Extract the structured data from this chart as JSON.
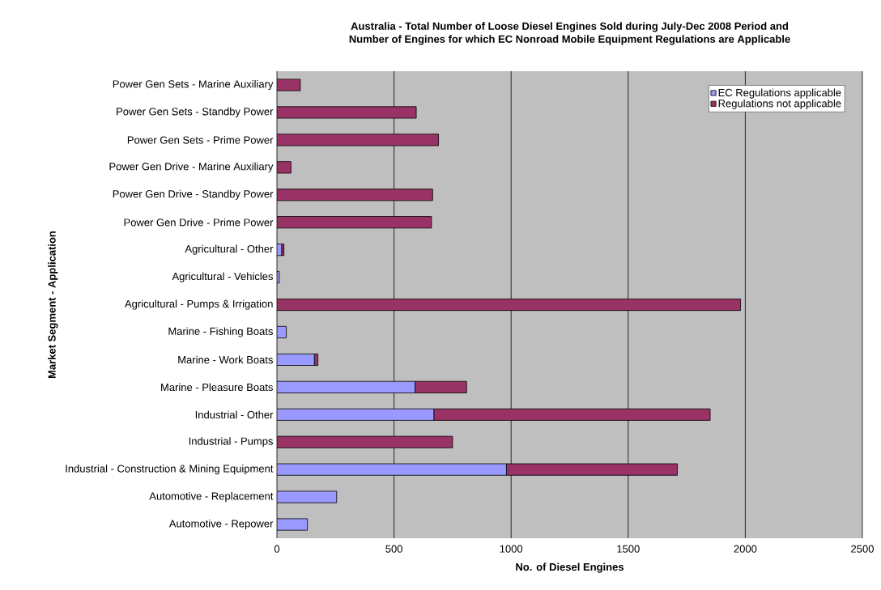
{
  "chart_data": {
    "type": "bar",
    "orientation": "horizontal",
    "stacked": true,
    "title": "Australia - Total Number of Loose Diesel Engines Sold during July-Dec 2008 Period and\nNumber of Engines for which EC Nonroad Mobile Equipment Regulations are Applicable",
    "xlabel": "No. of Diesel Engines",
    "ylabel": "Market Segment - Application",
    "categories": [
      "Power Gen Sets - Marine Auxiliary",
      "Power Gen Sets - Standby Power",
      "Power Gen Sets - Prime Power",
      "Power Gen Drive - Marine Auxiliary",
      "Power Gen Drive - Standby Power",
      "Power Gen Drive - Prime Power",
      "Agricultural - Other",
      "Agricultural - Vehicles",
      "Agricultural - Pumps & Irrigation",
      "Marine - Fishing Boats",
      "Marine - Work Boats",
      "Marine - Pleasure Boats",
      "Industrial - Other",
      "Industrial - Pumps",
      "Industrial - Construction & Mining Equipment",
      "Automotive - Replacement",
      "Automotive - Repower"
    ],
    "series": [
      {
        "name": "EC Regulations applicable",
        "color": "#9999ff",
        "values": [
          0,
          0,
          0,
          0,
          0,
          0,
          20,
          10,
          0,
          40,
          160,
          590,
          670,
          0,
          980,
          255,
          130
        ]
      },
      {
        "name": "Regulations not applicable",
        "color": "#993366",
        "values": [
          100,
          595,
          690,
          60,
          665,
          660,
          10,
          0,
          1980,
          0,
          15,
          220,
          1180,
          750,
          730,
          0,
          0
        ]
      }
    ],
    "xlim": [
      0,
      2500
    ],
    "xticks": [
      0,
      500,
      1000,
      1500,
      2000,
      2500
    ],
    "grid": "x",
    "legend": "top right"
  }
}
